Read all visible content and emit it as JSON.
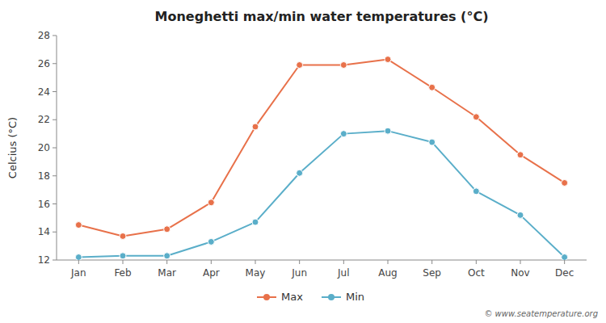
{
  "chart_data": {
    "type": "line",
    "title": "Moneghetti max/min water temperatures (°C)",
    "ylabel": "Celcius (°C)",
    "categories": [
      "Jan",
      "Feb",
      "Mar",
      "Apr",
      "May",
      "Jun",
      "Jul",
      "Aug",
      "Sep",
      "Oct",
      "Nov",
      "Dec"
    ],
    "series": [
      {
        "name": "Max",
        "color": "#e8714a",
        "marker": "circle",
        "line_style": "solid",
        "values": [
          14.5,
          13.7,
          14.2,
          16.1,
          21.5,
          25.9,
          25.9,
          26.3,
          24.3,
          22.2,
          19.5,
          17.5
        ]
      },
      {
        "name": "Min",
        "color": "#5aaec9",
        "marker": "circle",
        "line_style": "solid",
        "values": [
          12.2,
          12.3,
          12.3,
          13.3,
          14.7,
          18.2,
          21.0,
          21.2,
          20.4,
          16.9,
          15.2,
          12.2
        ]
      }
    ],
    "ylim": [
      12,
      28
    ],
    "yticks": [
      12,
      14,
      16,
      18,
      20,
      22,
      24,
      26,
      28
    ],
    "grid": false,
    "legend": "bottom",
    "annotations": [
      "© www.seatemperature.org"
    ]
  }
}
